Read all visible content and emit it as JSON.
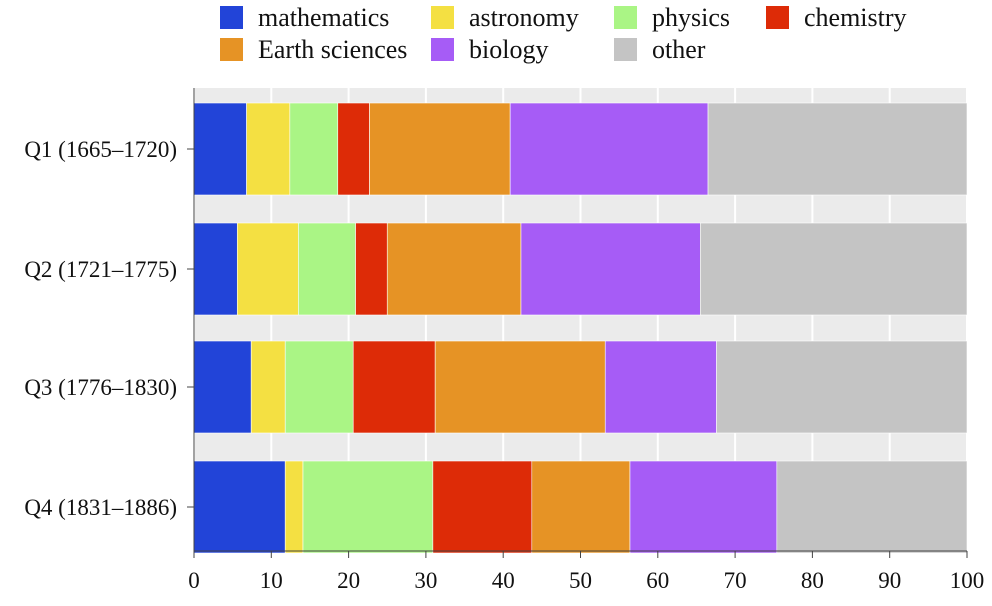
{
  "chart_data": {
    "type": "bar",
    "orientation": "horizontal",
    "stacked": true,
    "categories": [
      "Q1 (1665–1720)",
      "Q2 (1721–1775)",
      "Q3 (1776–1830)",
      "Q4 (1831–1886)"
    ],
    "series": [
      {
        "name": "mathematics",
        "color": "#2244d8",
        "values": [
          6.8,
          5.6,
          7.4,
          11.8
        ]
      },
      {
        "name": "astronomy",
        "color": "#f4e042",
        "values": [
          5.6,
          7.9,
          4.4,
          2.3
        ]
      },
      {
        "name": "physics",
        "color": "#aaf585",
        "values": [
          6.2,
          7.4,
          8.8,
          16.8
        ]
      },
      {
        "name": "chemistry",
        "color": "#dd2b07",
        "values": [
          4.1,
          4.1,
          10.6,
          12.8
        ]
      },
      {
        "name": "Earth sciences",
        "color": "#e69325",
        "values": [
          18.2,
          17.3,
          22.0,
          12.7
        ]
      },
      {
        "name": "biology",
        "color": "#a65cf6",
        "values": [
          25.6,
          23.2,
          14.4,
          19.0
        ]
      },
      {
        "name": "other",
        "color": "#c4c4c4",
        "values": [
          33.5,
          34.5,
          32.4,
          24.6
        ]
      }
    ],
    "xlim": [
      0,
      100
    ],
    "xticks": [
      0,
      10,
      20,
      30,
      40,
      50,
      60,
      70,
      80,
      90,
      100
    ],
    "legend": {
      "position": "top",
      "columns": 4
    },
    "grid": "vertical lines behind bars",
    "title": "",
    "xlabel": "",
    "ylabel": ""
  }
}
